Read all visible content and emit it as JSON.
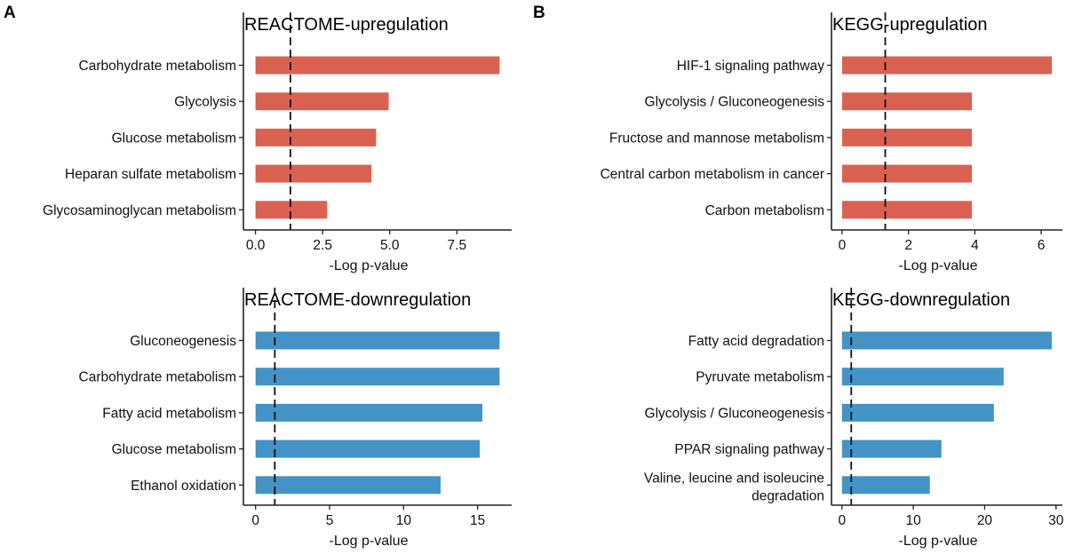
{
  "panel_labels": [
    "A",
    "B"
  ],
  "colors": {
    "up": "#DA6150",
    "down": "#4393C6",
    "axis": "#222222"
  },
  "chart_data": [
    {
      "type": "bar",
      "orientation": "horizontal",
      "title": "REACTOME-upregulation",
      "xlabel": "-Log p-value",
      "categories": [
        "Carbohydrate metabolism",
        "Glycolysis",
        "Glucose metabolism",
        "Heparan sulfate metabolism",
        "Glycosaminoglycan metabolism"
      ],
      "values": [
        9.09,
        4.96,
        4.49,
        4.32,
        2.67
      ],
      "xlim": [
        -0.45,
        9.54
      ],
      "xticks": [
        0,
        2.5,
        5,
        7.5
      ],
      "xtick_labels": [
        "0.0",
        "2.5",
        "5.0",
        "7.5"
      ],
      "threshold": 1.3,
      "color_key": "up"
    },
    {
      "type": "bar",
      "orientation": "horizontal",
      "title": "KEGG-upregulation",
      "xlabel": "-Log p-value",
      "categories": [
        "HIF-1 signaling pathway",
        "Glycolysis / Gluconeogenesis",
        "Fructose and mannose metabolism",
        "Central carbon metabolism in cancer",
        "Carbon metabolism"
      ],
      "values": [
        6.32,
        3.91,
        3.91,
        3.91,
        3.91
      ],
      "xlim": [
        -0.32,
        6.64
      ],
      "xticks": [
        0,
        2,
        4,
        6
      ],
      "xtick_labels": [
        "0",
        "2",
        "4",
        "6"
      ],
      "threshold": 1.3,
      "color_key": "up"
    },
    {
      "type": "bar",
      "orientation": "horizontal",
      "title": "REACTOME-downregulation",
      "xlabel": "-Log p-value",
      "categories": [
        "Gluconeogenesis",
        "Carbohydrate metabolism",
        "Fatty acid metabolism",
        "Glucose metabolism",
        "Ethanol oxidation"
      ],
      "values": [
        16.48,
        16.48,
        15.32,
        15.14,
        12.5
      ],
      "xlim": [
        -0.82,
        17.3
      ],
      "xticks": [
        0,
        5,
        10,
        15
      ],
      "xtick_labels": [
        "0",
        "5",
        "10",
        "15"
      ],
      "threshold": 1.3,
      "color_key": "down"
    },
    {
      "type": "bar",
      "orientation": "horizontal",
      "title": "KEGG-downregulation",
      "xlabel": "-Log p-value",
      "categories": [
        "Fatty acid degradation",
        "Pyruvate metabolism",
        "Glycolysis / Gluconeogenesis",
        "PPAR signaling pathway",
        "Valine, leucine and isoleucine degradation"
      ],
      "category_lines": [
        [
          "Fatty acid degradation"
        ],
        [
          "Pyruvate metabolism"
        ],
        [
          "Glycolysis / Gluconeogenesis"
        ],
        [
          "PPAR signaling pathway"
        ],
        [
          "Valine, leucine and isoleucine",
          "degradation"
        ]
      ],
      "values": [
        29.4,
        22.66,
        21.29,
        13.94,
        12.32
      ],
      "xlim": [
        -1.47,
        30.9
      ],
      "xticks": [
        0,
        10,
        20,
        30
      ],
      "xtick_labels": [
        "0",
        "10",
        "20",
        "30"
      ],
      "threshold": 1.3,
      "color_key": "down"
    }
  ]
}
